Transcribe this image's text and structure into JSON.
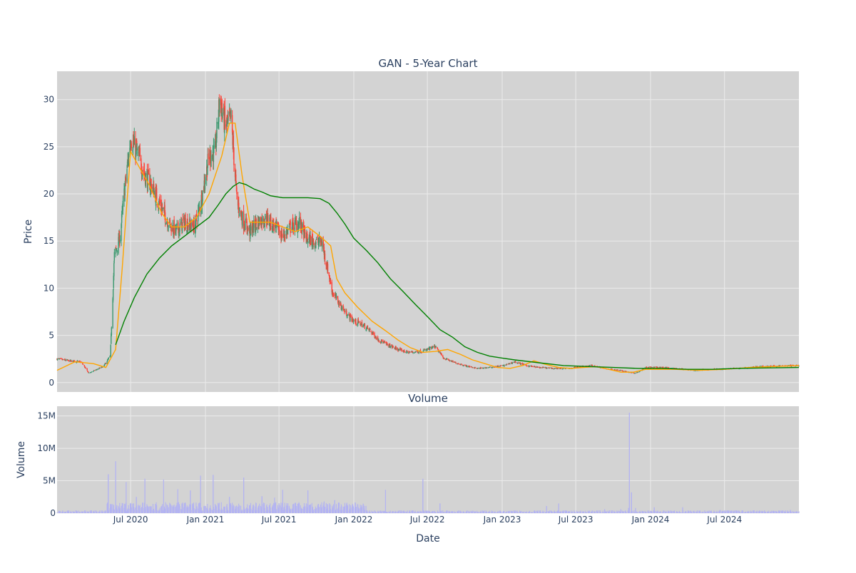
{
  "colors": {
    "plot_bg": "#d3d3d3",
    "grid": "#ebebeb",
    "text": "#2a3f5f",
    "up": "#3d9970",
    "down": "#ff4136",
    "ma_short": "#ffa500",
    "ma_long": "#008000",
    "volume": "#b3b3f2"
  },
  "chart_data": [
    {
      "type": "candlestick",
      "title": "GAN - 5-Year Chart",
      "ylabel": "Price",
      "ylim": [
        -1,
        33
      ],
      "yticks": [
        0,
        5,
        10,
        15,
        20,
        25,
        30
      ],
      "xlim": [
        "2020-01-02",
        "2024-12-31"
      ],
      "grid": true,
      "series": [
        {
          "x": [
            "2020-01-02",
            "2020-02-01",
            "2020-03-01",
            "2020-03-20",
            "2020-04-25",
            "2020-05-12",
            "2020-05-22",
            "2020-06-05",
            "2020-06-15",
            "2020-07-01",
            "2020-07-20",
            "2020-08-05",
            "2020-08-20",
            "2020-09-10",
            "2020-10-01",
            "2020-10-20",
            "2020-11-10",
            "2020-12-05",
            "2020-12-20",
            "2021-01-10",
            "2021-01-25",
            "2021-02-05",
            "2021-02-20",
            "2021-03-05",
            "2021-03-20",
            "2021-04-05",
            "2021-04-20",
            "2021-05-10",
            "2021-06-01",
            "2021-06-20",
            "2021-07-10",
            "2021-07-30",
            "2021-08-20",
            "2021-09-05",
            "2021-09-25",
            "2021-10-15",
            "2021-11-10",
            "2021-11-25",
            "2021-12-10",
            "2022-01-01",
            "2022-01-20",
            "2022-02-10",
            "2022-03-01",
            "2022-03-25",
            "2022-04-20",
            "2022-05-15",
            "2022-06-15",
            "2022-07-01",
            "2022-07-20",
            "2022-08-10",
            "2022-09-01",
            "2022-10-01",
            "2022-11-01",
            "2022-12-01",
            "2023-01-05",
            "2023-02-01",
            "2023-03-01",
            "2023-04-01",
            "2023-05-10",
            "2023-06-15",
            "2023-07-15",
            "2023-08-10",
            "2023-09-10",
            "2023-10-15",
            "2023-11-10",
            "2023-11-25",
            "2023-12-20",
            "2024-01-20",
            "2024-03-01",
            "2024-04-15",
            "2024-06-01",
            "2024-08-01",
            "2024-10-01",
            "2024-12-31"
          ],
          "close": [
            2.5,
            2.3,
            2.2,
            1.0,
            1.7,
            2.8,
            13.5,
            15.5,
            20,
            26,
            24,
            22,
            21,
            19,
            17,
            16,
            17,
            16.5,
            19,
            24,
            24.5,
            30,
            27,
            28,
            19,
            17,
            16,
            17,
            17.5,
            16.5,
            15.5,
            16.5,
            17,
            15.3,
            15,
            14.8,
            9.5,
            8.5,
            7.5,
            6.5,
            6.2,
            5.5,
            4.6,
            4.0,
            3.5,
            3.2,
            3.3,
            3.5,
            3.8,
            2.6,
            2.2,
            1.8,
            1.5,
            1.6,
            1.8,
            2.2,
            1.8,
            1.6,
            1.5,
            1.5,
            1.7,
            1.8,
            1.5,
            1.3,
            1.1,
            1.0,
            1.6,
            1.6,
            1.5,
            1.3,
            1.4,
            1.5,
            1.7,
            1.8
          ],
          "name": ""
        },
        {
          "name": "",
          "x": [
            "2020-01-02",
            "2020-02-15",
            "2020-04-01",
            "2020-05-01",
            "2020-05-25",
            "2020-06-10",
            "2020-07-01",
            "2020-07-20",
            "2020-08-15",
            "2020-09-15",
            "2020-10-10",
            "2020-11-10",
            "2020-12-10",
            "2021-01-10",
            "2021-02-10",
            "2021-03-01",
            "2021-03-15",
            "2021-04-01",
            "2021-04-20",
            "2021-05-15",
            "2021-06-10",
            "2021-07-10",
            "2021-08-10",
            "2021-09-10",
            "2021-10-10",
            "2021-11-05",
            "2021-11-20",
            "2021-12-10",
            "2022-01-10",
            "2022-02-15",
            "2022-03-20",
            "2022-04-20",
            "2022-05-20",
            "2022-06-20",
            "2022-07-20",
            "2022-08-20",
            "2022-09-20",
            "2022-10-20",
            "2022-11-20",
            "2022-12-20",
            "2023-01-20",
            "2023-02-20",
            "2023-03-20",
            "2023-04-20",
            "2023-05-20",
            "2023-06-20",
            "2023-07-20",
            "2023-08-20",
            "2023-09-20",
            "2023-10-20",
            "2023-11-20",
            "2023-12-20",
            "2024-01-20",
            "2024-03-01",
            "2024-05-01",
            "2024-07-01",
            "2024-09-01",
            "2024-12-31"
          ],
          "values": [
            1.3,
            2.2,
            2.0,
            1.6,
            3.5,
            12,
            24.5,
            23,
            21,
            18,
            16.5,
            16.5,
            17.5,
            20,
            24,
            27.5,
            27.5,
            22,
            17,
            17,
            17,
            16.5,
            16,
            16.5,
            15.5,
            14.5,
            11,
            9.5,
            8,
            6.5,
            5.5,
            4.5,
            3.7,
            3.2,
            3.3,
            3.5,
            3.0,
            2.4,
            2.0,
            1.6,
            1.5,
            1.8,
            2.3,
            1.9,
            1.6,
            1.5,
            1.6,
            1.7,
            1.4,
            1.1,
            1.1,
            1.4,
            1.4,
            1.4,
            1.3,
            1.4,
            1.6,
            1.8
          ]
        },
        {
          "name": "",
          "x": [
            "2020-05-25",
            "2020-06-15",
            "2020-07-10",
            "2020-08-10",
            "2020-09-10",
            "2020-10-10",
            "2020-11-10",
            "2020-12-10",
            "2021-01-10",
            "2021-02-01",
            "2021-02-20",
            "2021-03-10",
            "2021-03-25",
            "2021-04-10",
            "2021-05-01",
            "2021-05-20",
            "2021-06-10",
            "2021-07-10",
            "2021-08-10",
            "2021-09-10",
            "2021-10-10",
            "2021-11-01",
            "2021-11-20",
            "2021-12-10",
            "2022-01-01",
            "2022-02-01",
            "2022-03-01",
            "2022-04-01",
            "2022-05-01",
            "2022-06-01",
            "2022-07-01",
            "2022-08-01",
            "2022-09-01",
            "2022-10-01",
            "2022-11-01",
            "2022-12-01",
            "2023-01-01",
            "2023-02-01",
            "2023-04-01",
            "2023-06-01",
            "2023-08-01",
            "2023-10-01",
            "2023-12-01",
            "2024-02-01",
            "2024-04-01",
            "2024-06-01",
            "2024-08-01",
            "2024-10-01",
            "2024-12-31"
          ],
          "values": [
            4.0,
            6.5,
            9.0,
            11.5,
            13.2,
            14.5,
            15.5,
            16.5,
            17.5,
            18.8,
            20.0,
            20.8,
            21.2,
            21.0,
            20.5,
            20.2,
            19.8,
            19.6,
            19.6,
            19.6,
            19.5,
            19.0,
            18.0,
            16.8,
            15.3,
            14.0,
            12.7,
            11.0,
            9.7,
            8.3,
            7.0,
            5.6,
            4.8,
            3.8,
            3.2,
            2.8,
            2.6,
            2.4,
            2.1,
            1.8,
            1.7,
            1.6,
            1.5,
            1.5,
            1.4,
            1.4,
            1.5,
            1.55,
            1.6
          ]
        }
      ]
    },
    {
      "type": "bar",
      "title": "Volume",
      "xlabel": "Date",
      "ylabel": "Volume",
      "ylim": [
        0,
        16500000
      ],
      "yticks": [
        0,
        5000000,
        10000000,
        15000000
      ],
      "ytick_labels": [
        "0",
        "5M",
        "10M",
        "15M"
      ],
      "xlim": [
        "2020-01-02",
        "2024-12-31"
      ],
      "xticks": [
        "2020-07-01",
        "2021-01-01",
        "2021-07-01",
        "2022-01-01",
        "2022-07-01",
        "2023-01-01",
        "2023-07-01",
        "2024-01-01",
        "2024-07-01"
      ],
      "xtick_labels": [
        "Jul 2020",
        "Jan 2021",
        "Jul 2021",
        "Jan 2022",
        "Jul 2022",
        "Jan 2023",
        "Jul 2023",
        "Jan 2024",
        "Jul 2024"
      ],
      "spikes": {
        "x": [
          "2020-05-07",
          "2020-05-25",
          "2020-06-20",
          "2020-07-15",
          "2020-08-05",
          "2020-09-20",
          "2020-10-25",
          "2020-11-25",
          "2020-12-20",
          "2021-01-20",
          "2021-03-01",
          "2021-04-05",
          "2021-05-20",
          "2021-06-20",
          "2021-07-10",
          "2021-09-10",
          "2021-10-20",
          "2021-11-15",
          "2022-01-20",
          "2022-03-20",
          "2022-06-20",
          "2022-08-01",
          "2023-04-20",
          "2023-05-20",
          "2023-09-10",
          "2023-10-20",
          "2023-11-08",
          "2023-11-10",
          "2023-11-15",
          "2023-11-25",
          "2024-01-10",
          "2024-03-20",
          "2024-06-20",
          "2024-09-10",
          "2024-12-10"
        ],
        "values": [
          6000000,
          8000000,
          4800000,
          2500000,
          5300000,
          5200000,
          3700000,
          3500000,
          5800000,
          5900000,
          2500000,
          5500000,
          2600000,
          2400000,
          3600000,
          3500000,
          1800000,
          2000000,
          1200000,
          3600000,
          5300000,
          1500000,
          1100000,
          1500000,
          600000,
          600000,
          800000,
          15500000,
          3200000,
          800000,
          900000,
          900000,
          500000,
          400000,
          500000
        ]
      }
    }
  ]
}
